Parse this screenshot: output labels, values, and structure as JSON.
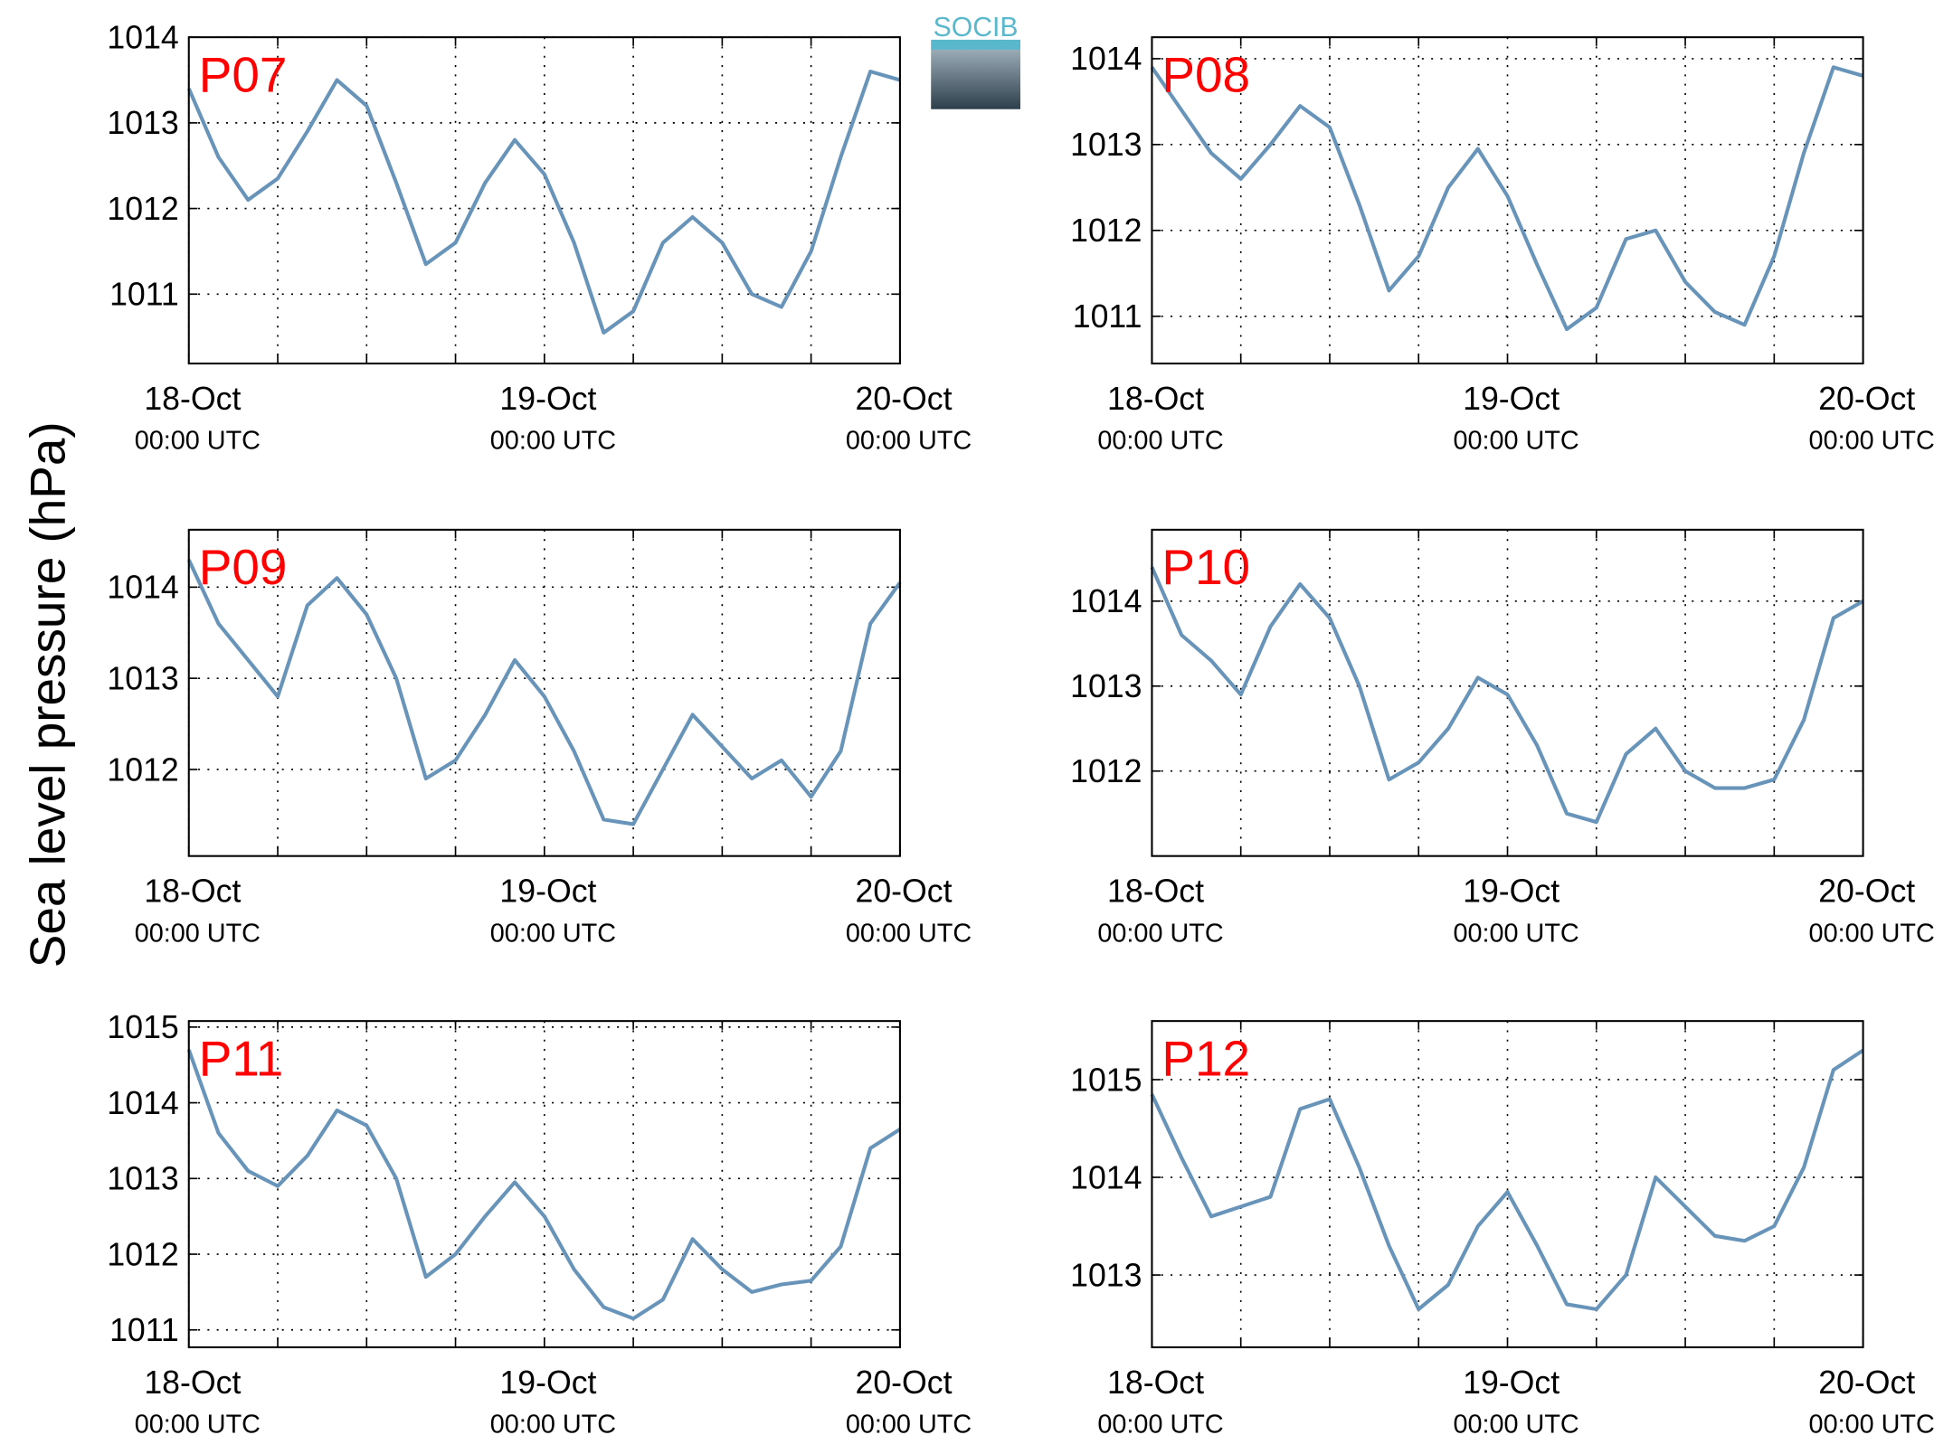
{
  "ylabel": "Sea level pressure (hPa)",
  "logo": "SOCIB",
  "chart_data": [
    {
      "type": "line",
      "title": "P07",
      "x": [
        0,
        2,
        4,
        6,
        8,
        10,
        12,
        14,
        16,
        18,
        20,
        22,
        24,
        26,
        28,
        30,
        32,
        34,
        36,
        38,
        40,
        42,
        44,
        46,
        48
      ],
      "xlim": [
        0,
        48
      ],
      "xticks": [
        {
          "value": 0,
          "label": [
            "18-Oct",
            "00:00 UTC"
          ]
        },
        {
          "value": 24,
          "label": [
            "19-Oct",
            "00:00 UTC"
          ]
        },
        {
          "value": 48,
          "label": [
            "20-Oct",
            "00:00 UTC"
          ]
        }
      ],
      "xminor": [
        6,
        12,
        18,
        30,
        36,
        42
      ],
      "series": [
        {
          "color": "#6894ba",
          "values": [
            1013.4,
            1012.6,
            1012.1,
            1012.35,
            1012.9,
            1013.5,
            1013.2,
            1012.3,
            1011.35,
            1011.6,
            1012.3,
            1012.8,
            1012.4,
            1011.6,
            1010.55,
            1010.8,
            1011.6,
            1011.9,
            1011.6,
            1011.0,
            1010.85,
            1011.5,
            1012.6,
            1013.6,
            1013.5
          ]
        }
      ],
      "ylim": [
        1010.19,
        1014
      ],
      "yticks": [
        1011,
        1012,
        1013,
        1014
      ],
      "grid": true
    },
    {
      "type": "line",
      "title": "P08",
      "x": [
        0,
        2,
        4,
        6,
        8,
        10,
        12,
        14,
        16,
        18,
        20,
        22,
        24,
        26,
        28,
        30,
        32,
        34,
        36,
        38,
        40,
        42,
        44,
        46,
        48
      ],
      "xlim": [
        0,
        48
      ],
      "xticks": [
        {
          "value": 0,
          "label": [
            "18-Oct",
            "00:00 UTC"
          ]
        },
        {
          "value": 24,
          "label": [
            "19-Oct",
            "00:00 UTC"
          ]
        },
        {
          "value": 48,
          "label": [
            "20-Oct",
            "00:00 UTC"
          ]
        }
      ],
      "xminor": [
        6,
        12,
        18,
        30,
        36,
        42
      ],
      "series": [
        {
          "color": "#6894ba",
          "values": [
            1013.9,
            1013.4,
            1012.9,
            1012.6,
            1013.0,
            1013.45,
            1013.2,
            1012.3,
            1011.3,
            1011.7,
            1012.5,
            1012.95,
            1012.4,
            1011.6,
            1010.85,
            1011.1,
            1011.9,
            1012.0,
            1011.4,
            1011.05,
            1010.9,
            1011.7,
            1012.9,
            1013.9,
            1013.8
          ]
        }
      ],
      "ylim": [
        1010.45,
        1014.25
      ],
      "yticks": [
        1011,
        1012,
        1013,
        1014
      ],
      "grid": true
    },
    {
      "type": "line",
      "title": "P09",
      "x": [
        0,
        2,
        4,
        6,
        8,
        10,
        12,
        14,
        16,
        18,
        20,
        22,
        24,
        26,
        28,
        30,
        32,
        34,
        36,
        38,
        40,
        42,
        44,
        46,
        48
      ],
      "xlim": [
        0,
        48
      ],
      "xticks": [
        {
          "value": 0,
          "label": [
            "18-Oct",
            "00:00 UTC"
          ]
        },
        {
          "value": 24,
          "label": [
            "19-Oct",
            "00:00 UTC"
          ]
        },
        {
          "value": 48,
          "label": [
            "20-Oct",
            "00:00 UTC"
          ]
        }
      ],
      "xminor": [
        6,
        12,
        18,
        30,
        36,
        42
      ],
      "series": [
        {
          "color": "#6894ba",
          "values": [
            1014.3,
            1013.6,
            1013.2,
            1012.8,
            1013.8,
            1014.1,
            1013.7,
            1013.0,
            1011.9,
            1012.1,
            1012.6,
            1013.2,
            1012.8,
            1012.2,
            1011.45,
            1011.4,
            1012.0,
            1012.6,
            1012.25,
            1011.9,
            1012.1,
            1011.7,
            1012.2,
            1013.6,
            1014.05
          ]
        }
      ],
      "ylim": [
        1011.05,
        1014.63
      ],
      "yticks": [
        1012,
        1013,
        1014
      ],
      "grid": true
    },
    {
      "type": "line",
      "title": "P10",
      "x": [
        0,
        2,
        4,
        6,
        8,
        10,
        12,
        14,
        16,
        18,
        20,
        22,
        24,
        26,
        28,
        30,
        32,
        34,
        36,
        38,
        40,
        42,
        44,
        46,
        48
      ],
      "xlim": [
        0,
        48
      ],
      "xticks": [
        {
          "value": 0,
          "label": [
            "18-Oct",
            "00:00 UTC"
          ]
        },
        {
          "value": 24,
          "label": [
            "19-Oct",
            "00:00 UTC"
          ]
        },
        {
          "value": 48,
          "label": [
            "20-Oct",
            "00:00 UTC"
          ]
        }
      ],
      "xminor": [
        6,
        12,
        18,
        30,
        36,
        42
      ],
      "series": [
        {
          "color": "#6894ba",
          "values": [
            1014.4,
            1013.6,
            1013.3,
            1012.9,
            1013.7,
            1014.2,
            1013.8,
            1013.0,
            1011.9,
            1012.1,
            1012.5,
            1013.1,
            1012.9,
            1012.3,
            1011.5,
            1011.4,
            1012.2,
            1012.5,
            1012.0,
            1011.8,
            1011.8,
            1011.9,
            1012.6,
            1013.8,
            1014.0
          ]
        }
      ],
      "ylim": [
        1011.0,
        1014.84
      ],
      "yticks": [
        1012,
        1013,
        1014
      ],
      "grid": true
    },
    {
      "type": "line",
      "title": "P11",
      "x": [
        0,
        2,
        4,
        6,
        8,
        10,
        12,
        14,
        16,
        18,
        20,
        22,
        24,
        26,
        28,
        30,
        32,
        34,
        36,
        38,
        40,
        42,
        44,
        46,
        48
      ],
      "xlim": [
        0,
        48
      ],
      "xticks": [
        {
          "value": 0,
          "label": [
            "18-Oct",
            "00:00 UTC"
          ]
        },
        {
          "value": 24,
          "label": [
            "19-Oct",
            "00:00 UTC"
          ]
        },
        {
          "value": 48,
          "label": [
            "20-Oct",
            "00:00 UTC"
          ]
        }
      ],
      "xminor": [
        6,
        12,
        18,
        30,
        36,
        42
      ],
      "series": [
        {
          "color": "#6894ba",
          "values": [
            1014.7,
            1013.6,
            1013.1,
            1012.9,
            1013.3,
            1013.9,
            1013.7,
            1013.0,
            1011.7,
            1012.0,
            1012.5,
            1012.95,
            1012.5,
            1011.8,
            1011.3,
            1011.15,
            1011.4,
            1012.2,
            1011.8,
            1011.5,
            1011.6,
            1011.65,
            1012.1,
            1013.4,
            1013.65
          ]
        }
      ],
      "ylim": [
        1010.77,
        1015.08
      ],
      "yticks": [
        1011,
        1012,
        1013,
        1014,
        1015
      ],
      "grid": true
    },
    {
      "type": "line",
      "title": "P12",
      "x": [
        0,
        2,
        4,
        6,
        8,
        10,
        12,
        14,
        16,
        18,
        20,
        22,
        24,
        26,
        28,
        30,
        32,
        34,
        36,
        38,
        40,
        42,
        44,
        46,
        48
      ],
      "xlim": [
        0,
        48
      ],
      "xticks": [
        {
          "value": 0,
          "label": [
            "18-Oct",
            "00:00 UTC"
          ]
        },
        {
          "value": 24,
          "label": [
            "19-Oct",
            "00:00 UTC"
          ]
        },
        {
          "value": 48,
          "label": [
            "20-Oct",
            "00:00 UTC"
          ]
        }
      ],
      "xminor": [
        6,
        12,
        18,
        30,
        36,
        42
      ],
      "series": [
        {
          "color": "#6894ba",
          "values": [
            1014.85,
            1014.2,
            1013.6,
            1013.7,
            1013.8,
            1014.7,
            1014.8,
            1014.1,
            1013.3,
            1012.65,
            1012.9,
            1013.5,
            1013.85,
            1013.3,
            1012.7,
            1012.65,
            1013.0,
            1014.0,
            1013.7,
            1013.4,
            1013.35,
            1013.5,
            1014.1,
            1015.1,
            1015.3
          ]
        }
      ],
      "ylim": [
        1012.26,
        1015.6
      ],
      "yticks": [
        1013,
        1014,
        1015
      ],
      "grid": true
    }
  ]
}
